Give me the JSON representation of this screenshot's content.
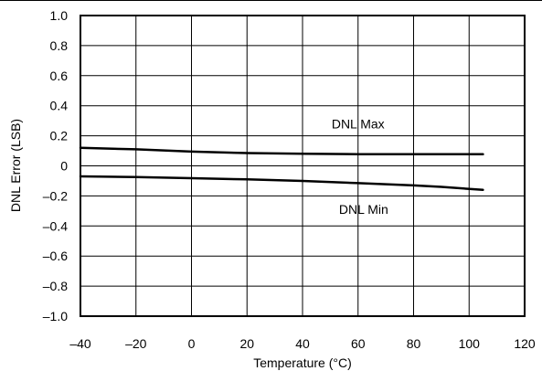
{
  "chart_data": {
    "type": "line",
    "xlabel": "Temperature (°C)",
    "ylabel": "DNL Error (LSB)",
    "xlim": [
      -40,
      120
    ],
    "ylim": [
      -1.0,
      1.0
    ],
    "x_ticks": [
      -40,
      -20,
      0,
      20,
      40,
      60,
      80,
      100,
      120
    ],
    "x_tick_labels": [
      "–40",
      "–20",
      "0",
      "20",
      "40",
      "60",
      "80",
      "100",
      "120"
    ],
    "y_ticks": [
      1.0,
      0.8,
      0.6,
      0.4,
      0.2,
      0,
      -0.2,
      -0.4,
      -0.6,
      -0.8,
      -1.0
    ],
    "y_tick_labels": [
      "1.0",
      "0.8",
      "0.6",
      "0.4",
      "0.2",
      "0",
      "–0.2",
      "–0.4",
      "–0.6",
      "–0.8",
      "–1.0"
    ],
    "grid": true,
    "line_color": "#000000",
    "series": [
      {
        "name": "DNL Max",
        "x": [
          -40,
          -20,
          0,
          20,
          40,
          60,
          80,
          105
        ],
        "y": [
          0.12,
          0.11,
          0.095,
          0.085,
          0.08,
          0.078,
          0.078,
          0.078
        ]
      },
      {
        "name": "DNL Min",
        "x": [
          -40,
          -20,
          0,
          20,
          40,
          60,
          80,
          90,
          105
        ],
        "y": [
          -0.07,
          -0.075,
          -0.082,
          -0.09,
          -0.1,
          -0.115,
          -0.13,
          -0.14,
          -0.16
        ]
      }
    ],
    "annotations": [
      {
        "text": "DNL Max",
        "x": 60,
        "y": 0.28
      },
      {
        "text": "DNL Min",
        "x": 62,
        "y": -0.29
      }
    ]
  }
}
